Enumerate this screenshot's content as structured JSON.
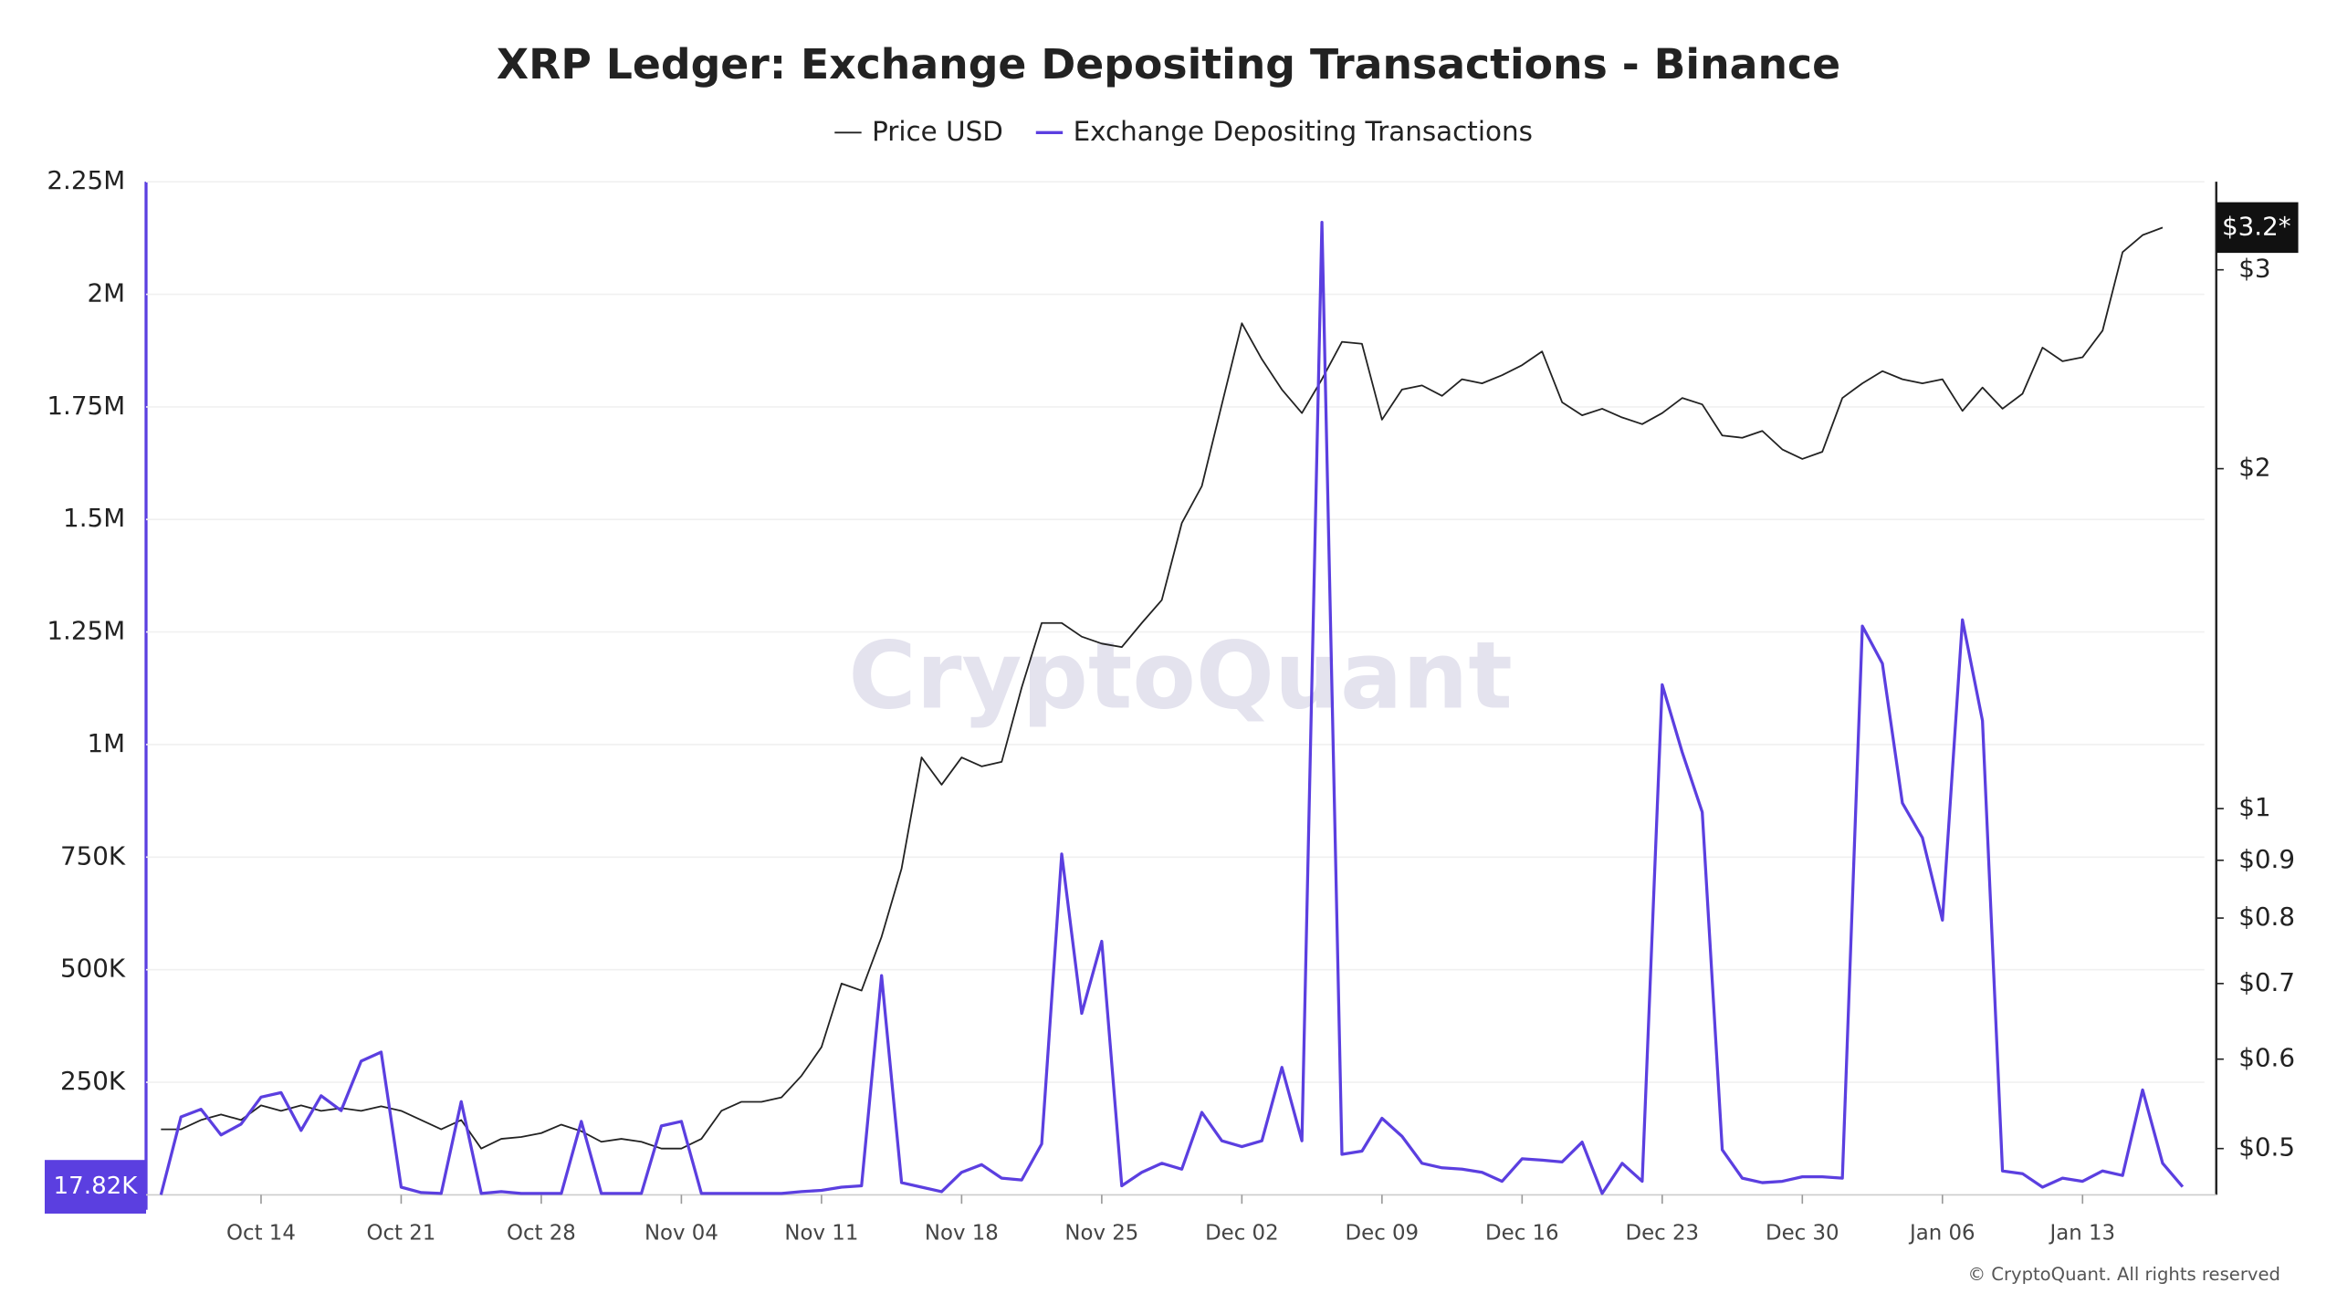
{
  "chart_data": {
    "type": "line",
    "title": "XRP Ledger: Exchange Depositing Transactions - Binance",
    "watermark": "CryptoQuant",
    "footer": "© CryptoQuant. All rights reserved",
    "price_marker": "$3.2*",
    "categories": [
      null,
      null,
      null,
      null,
      null,
      "Oct 14",
      null,
      null,
      null,
      null,
      null,
      null,
      "Oct 21",
      null,
      null,
      null,
      null,
      null,
      null,
      "Oct 28",
      null,
      null,
      null,
      null,
      null,
      null,
      "Nov 04",
      null,
      null,
      null,
      null,
      null,
      null,
      "Nov 11",
      null,
      null,
      null,
      null,
      null,
      null,
      "Nov 18",
      null,
      null,
      null,
      null,
      null,
      null,
      "Nov 25",
      null,
      null,
      null,
      null,
      null,
      null,
      "Dec 02",
      null,
      null,
      null,
      null,
      null,
      null,
      "Dec 09",
      null,
      null,
      null,
      null,
      null,
      null,
      "Dec 16",
      null,
      null,
      null,
      null,
      null,
      null,
      "Dec 23",
      null,
      null,
      null,
      null,
      null,
      null,
      "Dec 30",
      null,
      null,
      null,
      null,
      null,
      null,
      "Jan 06",
      null,
      null,
      null,
      null,
      null,
      null,
      "Jan 13",
      null,
      null,
      null,
      null,
      null
    ],
    "ylim": [
      0,
      2250000
    ],
    "yticks": [
      {
        "value": 250000,
        "label": "250K"
      },
      {
        "value": 500000,
        "label": "500K"
      },
      {
        "value": 750000,
        "label": "750K"
      },
      {
        "value": 1000000,
        "label": "1M"
      },
      {
        "value": 1250000,
        "label": "1.25M"
      },
      {
        "value": 1500000,
        "label": "1.5M"
      },
      {
        "value": 1750000,
        "label": "1.75M"
      },
      {
        "value": 2000000,
        "label": "2M"
      },
      {
        "value": 2250000,
        "label": "2.25M"
      }
    ],
    "y2lim": [
      0.455,
      3.59
    ],
    "y2log": true,
    "y2ticks": [
      {
        "value": 0.5,
        "label": "$0.5"
      },
      {
        "value": 0.6,
        "label": "$0.6"
      },
      {
        "value": 0.7,
        "label": "$0.7"
      },
      {
        "value": 0.8,
        "label": "$0.8"
      },
      {
        "value": 0.9,
        "label": "$0.9"
      },
      {
        "value": 1,
        "label": "$1"
      },
      {
        "value": 2,
        "label": "$2"
      },
      {
        "value": 3,
        "label": "$3"
      }
    ],
    "grid": true,
    "legend": "top",
    "series": [
      {
        "name": "Price USD",
        "color": "#222222",
        "axis": "y2",
        "values": [
          0.52,
          0.52,
          0.53,
          0.536,
          0.53,
          0.546,
          0.54,
          0.546,
          0.54,
          0.543,
          0.54,
          0.545,
          0.54,
          0.53,
          0.52,
          0.53,
          0.5,
          0.51,
          0.512,
          0.516,
          0.525,
          0.518,
          0.507,
          0.51,
          0.507,
          0.5,
          0.5,
          0.51,
          0.54,
          0.55,
          0.55,
          0.555,
          0.58,
          0.615,
          0.7,
          0.69,
          0.77,
          0.885,
          1.11,
          1.05,
          1.11,
          1.09,
          1.1,
          1.28,
          1.46,
          1.46,
          1.42,
          1.4,
          1.39,
          1.46,
          1.53,
          1.79,
          1.93,
          2.28,
          2.69,
          2.5,
          2.35,
          2.24,
          2.4,
          2.59,
          2.58,
          2.21,
          2.35,
          2.37,
          2.32,
          2.4,
          2.38,
          2.42,
          2.47,
          2.54,
          2.29,
          2.23,
          2.26,
          2.22,
          2.19,
          2.24,
          2.31,
          2.28,
          2.14,
          2.13,
          2.16,
          2.08,
          2.04,
          2.07,
          2.31,
          2.38,
          2.44,
          2.4,
          2.38,
          2.4,
          2.25,
          2.36,
          2.26,
          2.33,
          2.56,
          2.49,
          2.51,
          2.65,
          3.11,
          3.22,
          3.27,
          null
        ]
      },
      {
        "name": "Exchange Depositing Transactions",
        "color": "#5b3fe0",
        "values": [
          0,
          173000,
          190000,
          133000,
          157000,
          217000,
          227000,
          143000,
          220000,
          187000,
          297000,
          317000,
          17000,
          5000,
          3000,
          207000,
          3000,
          7000,
          3000,
          3000,
          3000,
          163000,
          3000,
          3000,
          3000,
          153000,
          163000,
          3000,
          3000,
          3000,
          3000,
          3000,
          7000,
          10000,
          17000,
          20000,
          487000,
          27000,
          17000,
          7000,
          50000,
          67000,
          37000,
          33000,
          113000,
          757000,
          403000,
          563000,
          20000,
          50000,
          70000,
          57000,
          183000,
          120000,
          107000,
          120000,
          283000,
          120000,
          2160000,
          90000,
          97000,
          170000,
          130000,
          70000,
          60000,
          57000,
          50000,
          30000,
          80000,
          77000,
          73000,
          117000,
          3000,
          70000,
          30000,
          1133000,
          983000,
          850000,
          100000,
          37000,
          27000,
          30000,
          40000,
          40000,
          37000,
          1263000,
          1180000,
          870000,
          793000,
          610000,
          1277000,
          1053000,
          53000,
          47000,
          17000,
          37000,
          30000,
          53000,
          43000,
          233000,
          70000,
          17820
        ],
        "value_labels": [
          null,
          null,
          null,
          null,
          null,
          null,
          null,
          null,
          null,
          null,
          null,
          null,
          null,
          null,
          null,
          null,
          null,
          null,
          null,
          null,
          null,
          null,
          null,
          null,
          null,
          null,
          null,
          null,
          null,
          null,
          null,
          null,
          null,
          null,
          null,
          null,
          null,
          null,
          null,
          null,
          null,
          null,
          null,
          null,
          null,
          null,
          null,
          null,
          null,
          null,
          null,
          null,
          null,
          null,
          null,
          null,
          null,
          null,
          null,
          null,
          null,
          null,
          null,
          null,
          null,
          null,
          null,
          null,
          null,
          null,
          null,
          null,
          null,
          null,
          null,
          null,
          null,
          null,
          null,
          null,
          null,
          null,
          null,
          null,
          null,
          null,
          null,
          null,
          null,
          null,
          null,
          null,
          null,
          null,
          null,
          null,
          null,
          null,
          null,
          null,
          null,
          "17.82K"
        ]
      }
    ]
  }
}
